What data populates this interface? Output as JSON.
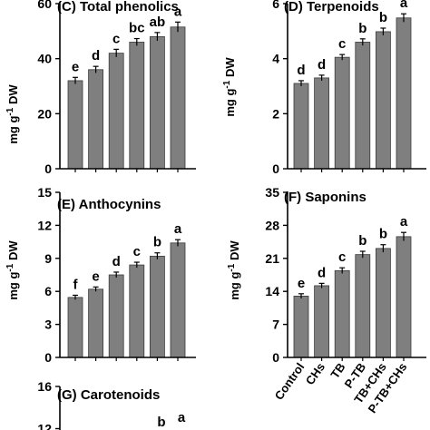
{
  "bar_color": "#7f7f7f",
  "chart_data": [
    {
      "id": "C",
      "type": "bar",
      "title": "(C)  Total phenolics",
      "ylabel_main": "mg g",
      "ylabel_sup": "-1",
      "ylabel_unit": " DW",
      "ylim": [
        0,
        60
      ],
      "yticks": [
        0,
        20,
        40,
        60
      ],
      "categories": [
        "Control",
        "CHs",
        "TB",
        "P-TB",
        "TB+CHs",
        "P-TB+CHs"
      ],
      "values": [
        32,
        36,
        42,
        46,
        48,
        51.5
      ],
      "errors": [
        1.2,
        1.2,
        1.4,
        1.3,
        1.5,
        1.8
      ],
      "letters": [
        "e",
        "d",
        "c",
        "bc",
        "ab",
        "a"
      ],
      "show_categories": false
    },
    {
      "id": "D",
      "type": "bar",
      "title": "(D)     Terpenoids",
      "ylabel_main": "mg g",
      "ylabel_sup": "-1",
      "ylabel_unit": " DW",
      "ylim": [
        0,
        6
      ],
      "yticks": [
        0,
        2,
        4,
        6
      ],
      "categories": [
        "Control",
        "CHs",
        "TB",
        "P-TB",
        "TB+CHs",
        "P-TB+CHs"
      ],
      "values": [
        3.1,
        3.3,
        4.05,
        4.6,
        4.98,
        5.48
      ],
      "errors": [
        0.1,
        0.1,
        0.1,
        0.12,
        0.13,
        0.15
      ],
      "letters": [
        "d",
        "d",
        "c",
        "b",
        "b",
        "a"
      ],
      "show_categories": false
    },
    {
      "id": "E",
      "type": "bar",
      "title": "(E)     Anthocynins",
      "ylabel_main": "mg g",
      "ylabel_sup": "-1",
      "ylabel_unit": " DW",
      "ylim": [
        0,
        15
      ],
      "yticks": [
        0,
        3,
        6,
        9,
        12,
        15
      ],
      "categories": [
        "Control",
        "CHs",
        "TB",
        "P-TB",
        "TB+CHs",
        "P-TB+CHs"
      ],
      "values": [
        5.45,
        6.2,
        7.5,
        8.4,
        9.2,
        10.4
      ],
      "errors": [
        0.2,
        0.2,
        0.25,
        0.25,
        0.3,
        0.3
      ],
      "letters": [
        "f",
        "e",
        "d",
        "c",
        "b",
        "a"
      ],
      "show_categories": false
    },
    {
      "id": "F",
      "type": "bar",
      "title": "(F)      Saponins",
      "ylabel_main": "mg g",
      "ylabel_sup": "-1",
      "ylabel_unit": " DW",
      "ylim": [
        0,
        35
      ],
      "yticks": [
        0,
        7,
        14,
        21,
        28,
        35
      ],
      "categories": [
        "Control",
        "CHs",
        "TB",
        "P-TB",
        "TB+CHs",
        "P-TB+CHs"
      ],
      "values": [
        13,
        15.2,
        18.4,
        21.8,
        23.1,
        25.6
      ],
      "errors": [
        0.5,
        0.5,
        0.6,
        0.7,
        0.8,
        0.9
      ],
      "letters": [
        "e",
        "d",
        "c",
        "b",
        "b",
        "a"
      ],
      "show_categories": true
    },
    {
      "id": "G",
      "type": "bar",
      "title": "(G)       Carotenoids",
      "ylim": [
        0,
        16
      ],
      "yticks": [
        12,
        16
      ],
      "categories": [
        "Control",
        "CHs",
        "TB",
        "P-TB",
        "TB+CHs",
        "P-TB+CHs"
      ],
      "letters_visible": [
        "b",
        "a"
      ],
      "show_categories": false
    }
  ]
}
